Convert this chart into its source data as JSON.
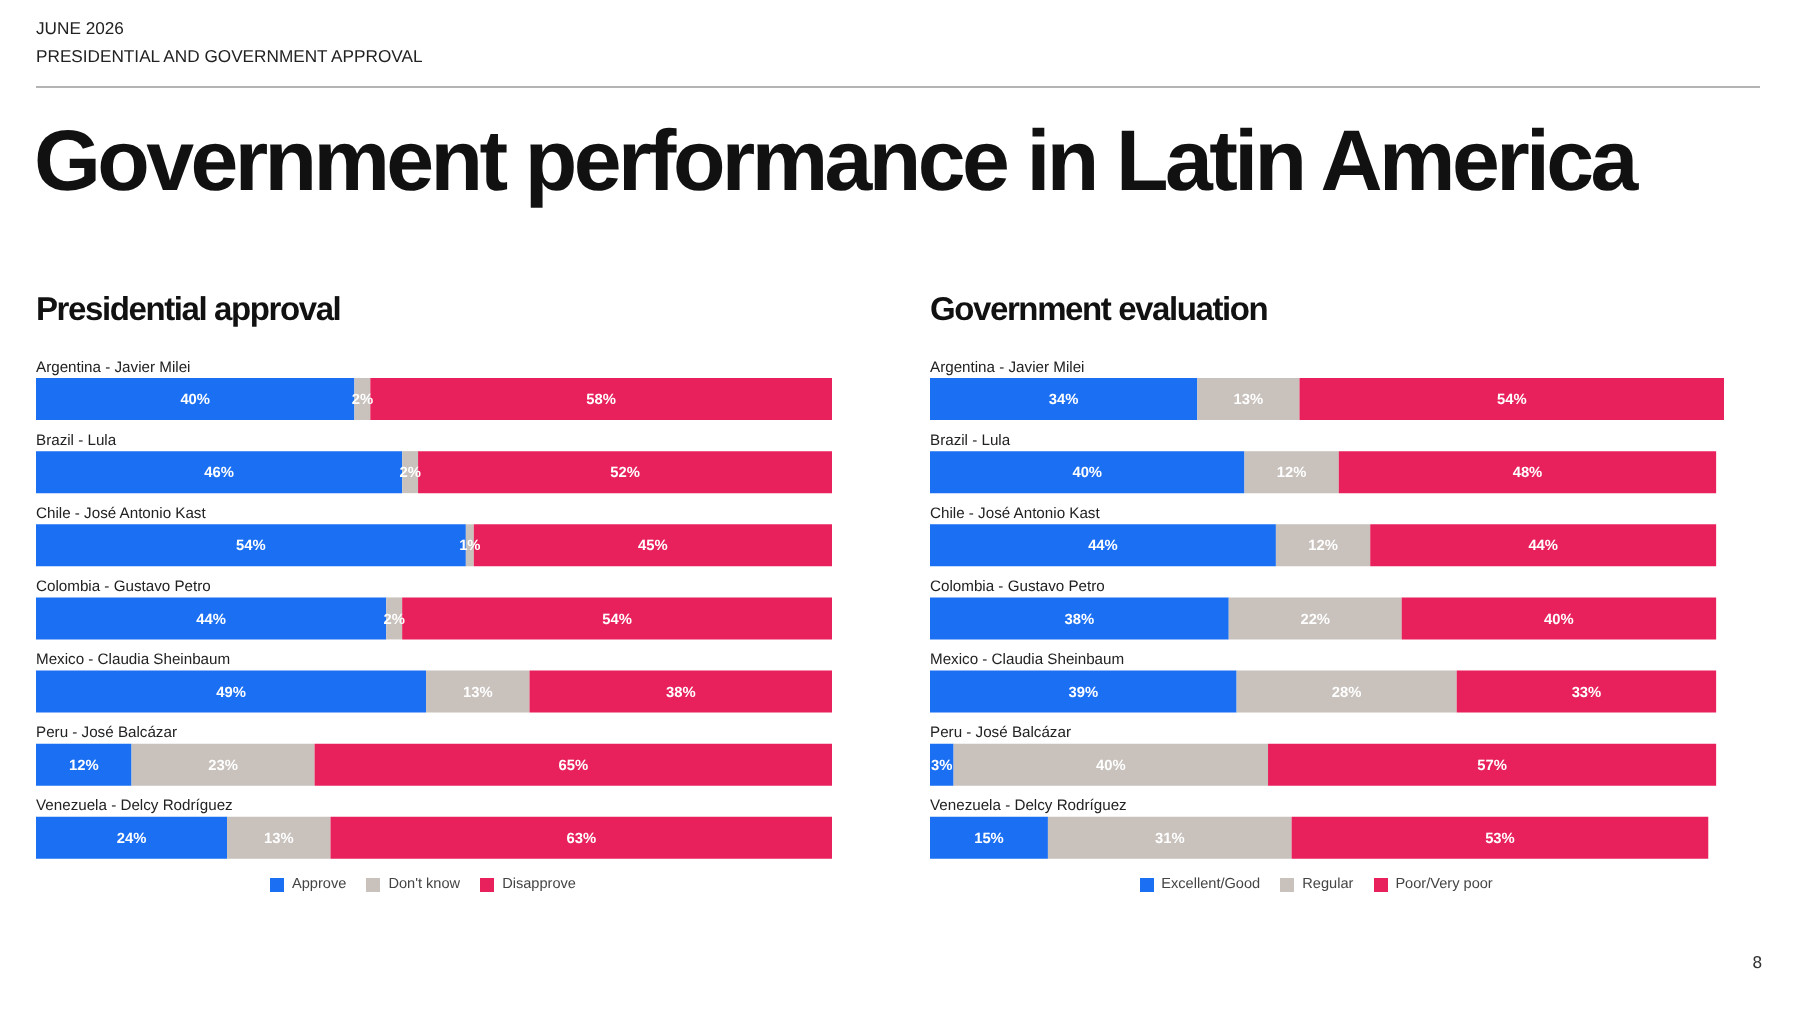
{
  "chart_data": [
    {
      "type": "other",
      "title": "Government performance in Latin America",
      "annotations": [
        "JUNE 2026",
        "PRESIDENTIAL AND GOVERNMENT APPROVAL"
      ]
    },
    {
      "type": "bar",
      "orientation": "horizontal",
      "stacked": true,
      "title": "Presidential approval",
      "categories": [
        "Argentina - Javier Milei",
        "Brazil - Lula",
        "Chile - José Antonio Kast",
        "Colombia - Gustavo Petro",
        "Mexico - Claudia Sheinbaum",
        "Peru - José Balcázar",
        "Venezuela - Delcy Rodríguez"
      ],
      "series": [
        {
          "name": "Approve",
          "color": "#1a6ff3",
          "values": [
            40,
            46,
            54,
            44,
            49,
            12,
            24
          ],
          "value_labels": [
            "40%",
            "46%",
            "54%",
            "44%",
            "49%",
            "12%",
            "24%"
          ]
        },
        {
          "name": "Don't know",
          "color": "#c8c1bc",
          "values": [
            2,
            2,
            1,
            2,
            13,
            23,
            13
          ],
          "value_labels": [
            "2%",
            "2%",
            "1%",
            "2%",
            "13%",
            "23%",
            "13%"
          ]
        },
        {
          "name": "Disapprove",
          "color": "#e8205c",
          "values": [
            58,
            52,
            45,
            54,
            38,
            65,
            63
          ],
          "value_labels": [
            "58%",
            "52%",
            "45%",
            "54%",
            "38%",
            "65%",
            "63%"
          ]
        }
      ],
      "legend": "bottom",
      "tick_labels": "y"
    },
    {
      "type": "bar",
      "orientation": "horizontal",
      "stacked": true,
      "title": "Government evaluation",
      "categories": [
        "Argentina - Javier Milei",
        "Brazil - Lula",
        "Chile - José Antonio Kast",
        "Colombia - Gustavo Petro",
        "Mexico - Claudia Sheinbaum",
        "Peru - José Balcázar",
        "Venezuela - Delcy Rodríguez"
      ],
      "series": [
        {
          "name": "Excellent/Good",
          "color": "#1a6ff3",
          "values": [
            34,
            40,
            44,
            38,
            39,
            3,
            15
          ],
          "value_labels": [
            "34%",
            "40%",
            "44%",
            "38%",
            "39%",
            "3%",
            "15%"
          ]
        },
        {
          "name": "Regular",
          "color": "#c8c1bc",
          "values": [
            13,
            12,
            12,
            22,
            28,
            40,
            31
          ],
          "value_labels": [
            "13%",
            "12%",
            "12%",
            "22%",
            "28%",
            "40%",
            "31%"
          ]
        },
        {
          "name": "Poor/Very poor",
          "color": "#e8205c",
          "values": [
            54,
            48,
            44,
            40,
            33,
            57,
            53
          ],
          "value_labels": [
            "54%",
            "48%",
            "44%",
            "40%",
            "33%",
            "57%",
            "53%"
          ]
        }
      ],
      "legend": "bottom",
      "tick_labels": "y",
      "annotations": [
        "8"
      ]
    }
  ]
}
